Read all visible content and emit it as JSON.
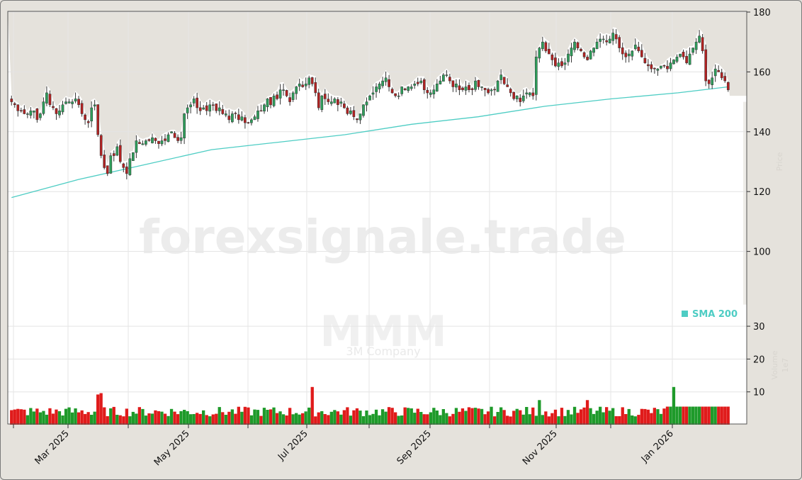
{
  "chart_data": {
    "type": "candlestick",
    "ticker": "MMM",
    "company": "3M Company",
    "watermark": "forexsignale.trade",
    "title": "",
    "xlabel": "",
    "ylabel_price": "Price",
    "ylabel_volume": "Volume",
    "volume_scale_label": "1e7",
    "price_axis": {
      "ticks": [
        180,
        160,
        140,
        120,
        100
      ],
      "range": [
        100,
        180
      ]
    },
    "volume_axis": {
      "ticks": [
        30,
        20,
        10
      ],
      "range": [
        0,
        38
      ]
    },
    "x_ticks": [
      "Mar 2025",
      "May 2025",
      "Jul 2025",
      "Sep 2025",
      "Nov 2025",
      "Jan 2026"
    ],
    "legend": [
      {
        "label": "SMA 200",
        "color": "#4ecdc4"
      }
    ],
    "colors": {
      "up": "#2e9e5b",
      "down": "#b22222",
      "vol_up": "#1e9a2a",
      "vol_down": "#e01b1b",
      "sma": "#4ecdc4",
      "band": "#e5e2dc"
    },
    "sma200": {
      "start": 118,
      "points": [
        [
          0,
          118
        ],
        [
          40,
          124
        ],
        [
          80,
          129
        ],
        [
          120,
          134
        ],
        [
          160,
          136.5
        ],
        [
          200,
          139
        ],
        [
          240,
          142.5
        ],
        [
          280,
          145
        ],
        [
          320,
          148.5
        ],
        [
          360,
          151
        ],
        [
          400,
          153
        ],
        [
          430,
          155
        ]
      ]
    },
    "close_series_monthly": [
      {
        "month": "Feb 2025",
        "approx_close": 147
      },
      {
        "month": "Mar 2025",
        "approx_close": 150
      },
      {
        "month": "Apr 2025",
        "approx_close": 136
      },
      {
        "month": "May 2025",
        "approx_close": 148
      },
      {
        "month": "Jun 2025",
        "approx_close": 149
      },
      {
        "month": "Jul 2025",
        "approx_close": 153
      },
      {
        "month": "Aug 2025",
        "approx_close": 155
      },
      {
        "month": "Sep 2025",
        "approx_close": 154
      },
      {
        "month": "Oct 2025",
        "approx_close": 166
      },
      {
        "month": "Nov 2025",
        "approx_close": 170
      },
      {
        "month": "Dec 2025",
        "approx_close": 161
      },
      {
        "month": "Jan 2026",
        "approx_close": 157
      }
    ],
    "closes": [
      150,
      149,
      147,
      147,
      146,
      146,
      147,
      147,
      144,
      146,
      150,
      153,
      149,
      148,
      146,
      147,
      149,
      150,
      150,
      150,
      151,
      149,
      146,
      144,
      143,
      148,
      149,
      139,
      132,
      128,
      126,
      132,
      132,
      135,
      130,
      128,
      126,
      131,
      133,
      137,
      136,
      136,
      137,
      137,
      138,
      137,
      136,
      137,
      137,
      139,
      140,
      138,
      137,
      138,
      146,
      148,
      149,
      151,
      148,
      147,
      148,
      147,
      149,
      149,
      147,
      148,
      146,
      146,
      144,
      146,
      146,
      144,
      145,
      143,
      143,
      144,
      145,
      147,
      147,
      149,
      151,
      149,
      152,
      151,
      154,
      154,
      152,
      150,
      153,
      155,
      156,
      155,
      156,
      158,
      156,
      153,
      148,
      152,
      151,
      150,
      150,
      151,
      149,
      150,
      148,
      146,
      147,
      145,
      144,
      146,
      149,
      150,
      152,
      153,
      155,
      156,
      157,
      158,
      155,
      153,
      152,
      152,
      155,
      154,
      155,
      155,
      156,
      156,
      157,
      154,
      153,
      153,
      154,
      156,
      157,
      159,
      159,
      157,
      155,
      156,
      154,
      154,
      155,
      154,
      154,
      157,
      155,
      155,
      154,
      153,
      154,
      154,
      157,
      159,
      156,
      155,
      153,
      151,
      152,
      150,
      152,
      153,
      153,
      152,
      165,
      168,
      170,
      167,
      166,
      164,
      162,
      163,
      162,
      163,
      166,
      168,
      170,
      168,
      167,
      165,
      164,
      167,
      168,
      170,
      171,
      171,
      170,
      171,
      173,
      171,
      168,
      166,
      165,
      166,
      167,
      169,
      167,
      165,
      163,
      162,
      161,
      161,
      161,
      162,
      162,
      161,
      163,
      164,
      165,
      166,
      165,
      163,
      166,
      168,
      170,
      172,
      167,
      157,
      156,
      158,
      161,
      160,
      158,
      157,
      154
    ]
  },
  "legend": {
    "sma_label": "SMA 200"
  },
  "axis": {
    "price_ticks": [
      "180",
      "160",
      "140",
      "120",
      "100"
    ],
    "volume_ticks": [
      "30",
      "20",
      "10"
    ],
    "x_ticks": [
      "Mar 2025",
      "May 2025",
      "Jul 2025",
      "Sep 2025",
      "Nov 2025",
      "Jan 2026"
    ],
    "price_label": "Price",
    "volume_label": "Volume",
    "volume_exp": "1e7"
  },
  "watermark": {
    "site": "forexsignale.trade",
    "ticker": "MMM",
    "company": "3M Company"
  }
}
